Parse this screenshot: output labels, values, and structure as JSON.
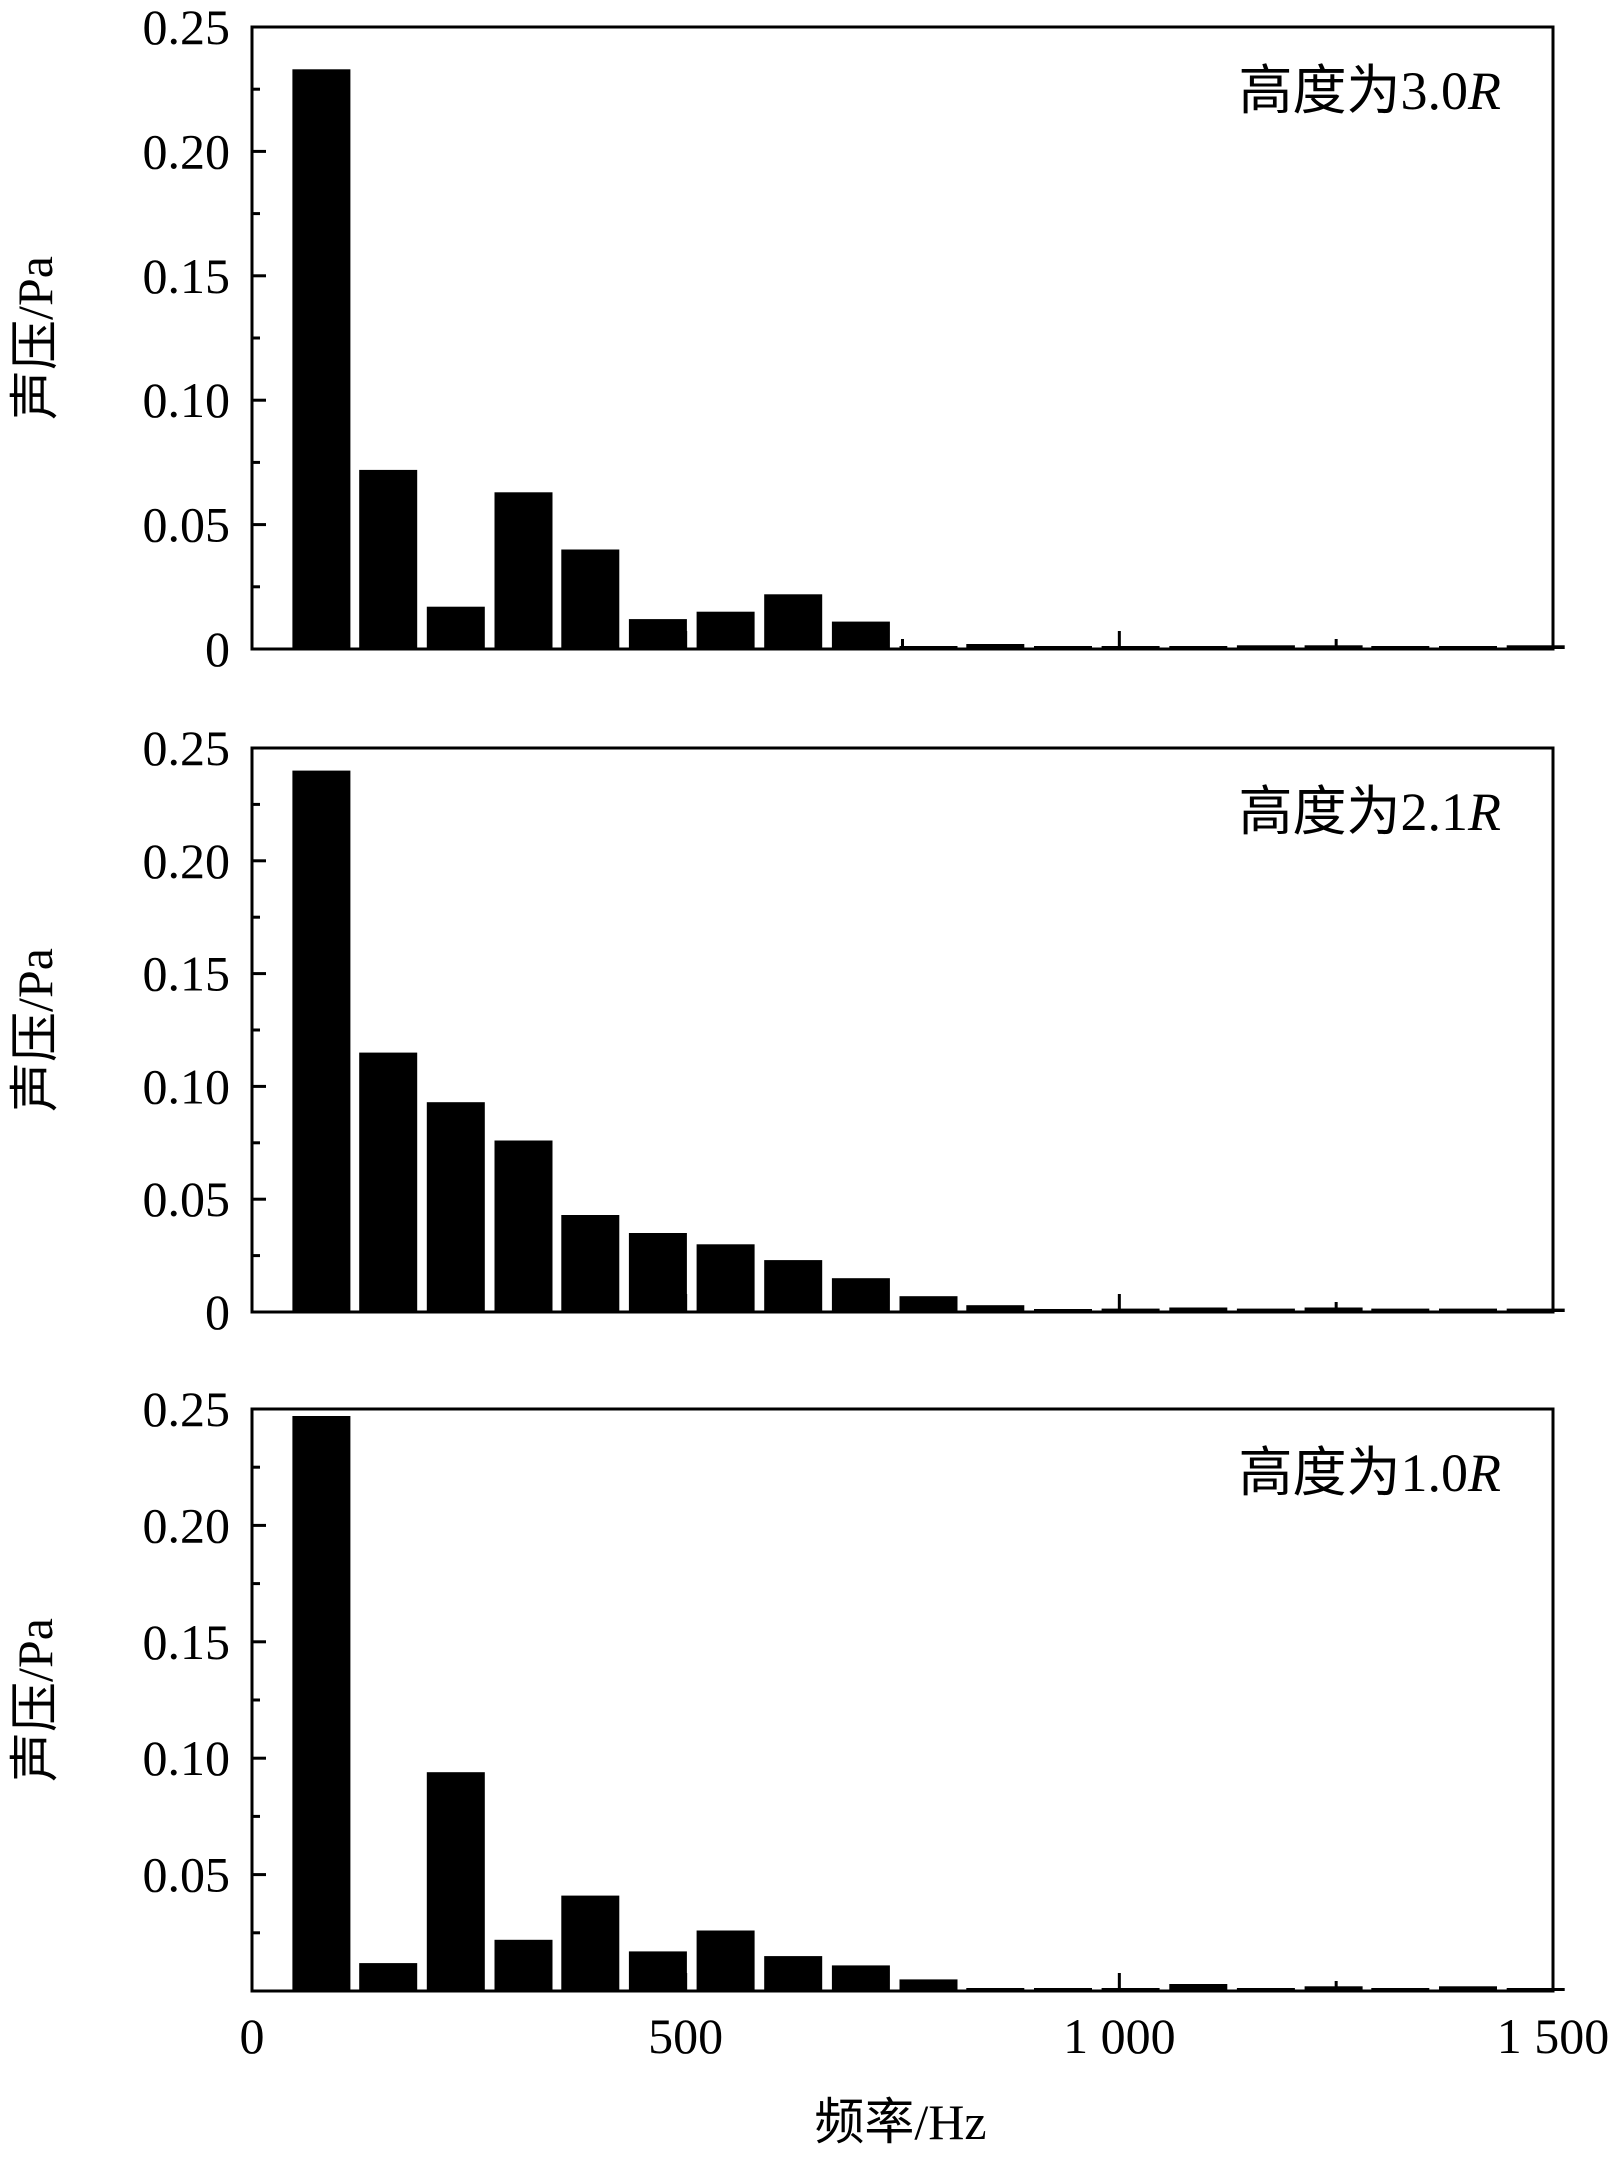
{
  "chart_data": [
    {
      "type": "bar",
      "annotation_prefix": "高度为3.0",
      "annotation_suffix": "R",
      "ylabel": "声压/Pa",
      "xlim": [
        0,
        1500
      ],
      "ylim": [
        0,
        0.25
      ],
      "yticks": [
        0,
        0.05,
        0.1,
        0.15,
        0.2,
        0.25
      ],
      "ytick_labels": [
        "0",
        "0.05",
        "0.10",
        "0.15",
        "0.20",
        "0.25"
      ],
      "xticks": [
        0,
        500,
        1000,
        1500
      ],
      "xtick_labels": [],
      "x": [
        80,
        157,
        235,
        313,
        390,
        468,
        546,
        624,
        702,
        780,
        857,
        935,
        1013,
        1091,
        1169,
        1247,
        1324,
        1402,
        1480
      ],
      "values": [
        0.233,
        0.072,
        0.017,
        0.063,
        0.04,
        0.012,
        0.015,
        0.022,
        0.011,
        0.001,
        0.002,
        0.001,
        0.001,
        0.001,
        0.0015,
        0.0015,
        0.001,
        0.001,
        0.0015
      ],
      "grid": false
    },
    {
      "type": "bar",
      "annotation_prefix": "高度为2.1",
      "annotation_suffix": "R",
      "ylabel": "声压/Pa",
      "xlim": [
        0,
        1500
      ],
      "ylim": [
        0,
        0.25
      ],
      "yticks": [
        0,
        0.05,
        0.1,
        0.15,
        0.2,
        0.25
      ],
      "ytick_labels": [
        "0",
        "0.05",
        "0.10",
        "0.15",
        "0.20",
        "0.25"
      ],
      "xticks": [
        0,
        500,
        1000,
        1500
      ],
      "xtick_labels": [],
      "x": [
        80,
        157,
        235,
        313,
        390,
        468,
        546,
        624,
        702,
        780,
        857,
        935,
        1013,
        1091,
        1169,
        1247,
        1324,
        1402,
        1480
      ],
      "values": [
        0.24,
        0.115,
        0.093,
        0.076,
        0.043,
        0.035,
        0.03,
        0.023,
        0.015,
        0.007,
        0.003,
        0.001,
        0.0015,
        0.002,
        0.0015,
        0.002,
        0.0015,
        0.0015,
        0.0015
      ],
      "grid": false
    },
    {
      "type": "bar",
      "annotation_prefix": "高度为1.0",
      "annotation_suffix": "R",
      "ylabel": "声压/Pa",
      "xlabel": "频率/Hz",
      "xlim": [
        0,
        1500
      ],
      "ylim": [
        0,
        0.25
      ],
      "yticks": [
        0.05,
        0.1,
        0.15,
        0.2,
        0.25
      ],
      "ytick_labels": [
        "0.05",
        "0.10",
        "0.15",
        "0.20",
        "0.25"
      ],
      "xticks": [
        0,
        500,
        1000,
        1500
      ],
      "xtick_labels": [
        "0",
        "500",
        "1 000",
        "1 500"
      ],
      "x": [
        80,
        157,
        235,
        313,
        390,
        468,
        546,
        624,
        702,
        780,
        857,
        935,
        1013,
        1091,
        1169,
        1247,
        1324,
        1402,
        1480
      ],
      "values": [
        0.247,
        0.012,
        0.094,
        0.022,
        0.041,
        0.017,
        0.026,
        0.015,
        0.011,
        0.005,
        0.001,
        0.0005,
        0.0005,
        0.003,
        0.0005,
        0.002,
        0.0005,
        0.002,
        0.0005
      ],
      "grid": false
    }
  ]
}
